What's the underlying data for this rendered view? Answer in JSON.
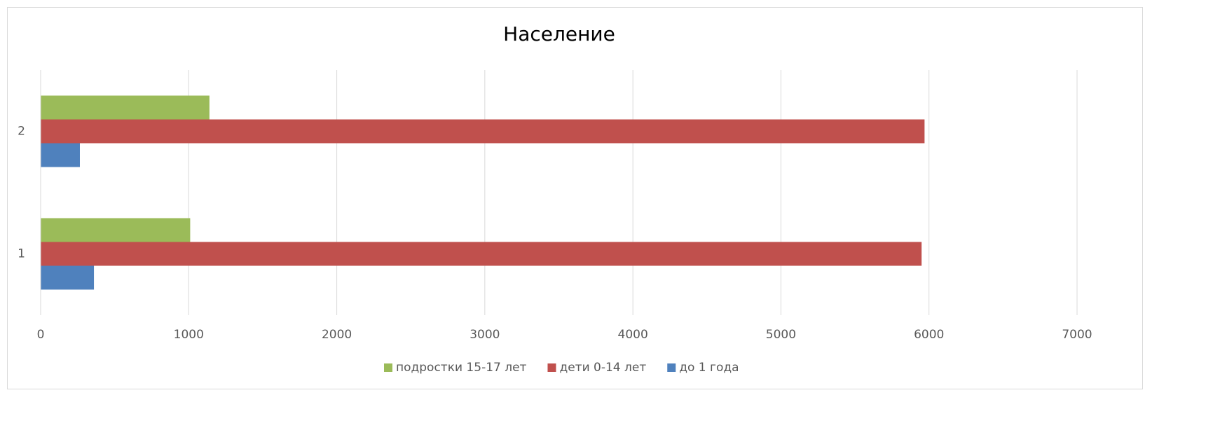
{
  "chart_data": {
    "type": "bar",
    "orientation": "horizontal",
    "title": "Население",
    "categories": [
      "1",
      "2"
    ],
    "series": [
      {
        "name": "подростки 15-17 лет",
        "color": "#9bbb59",
        "values": [
          1010,
          1140
        ]
      },
      {
        "name": "дети 0-14 лет",
        "color": "#c0504d",
        "values": [
          5950,
          5970
        ]
      },
      {
        "name": "до 1 года",
        "color": "#4f81bd",
        "values": [
          360,
          265
        ]
      }
    ],
    "xlim": [
      0,
      7000
    ],
    "xticks": [
      0,
      1000,
      2000,
      3000,
      4000,
      5000,
      6000,
      7000
    ],
    "grid": true,
    "legend": "bottom"
  }
}
